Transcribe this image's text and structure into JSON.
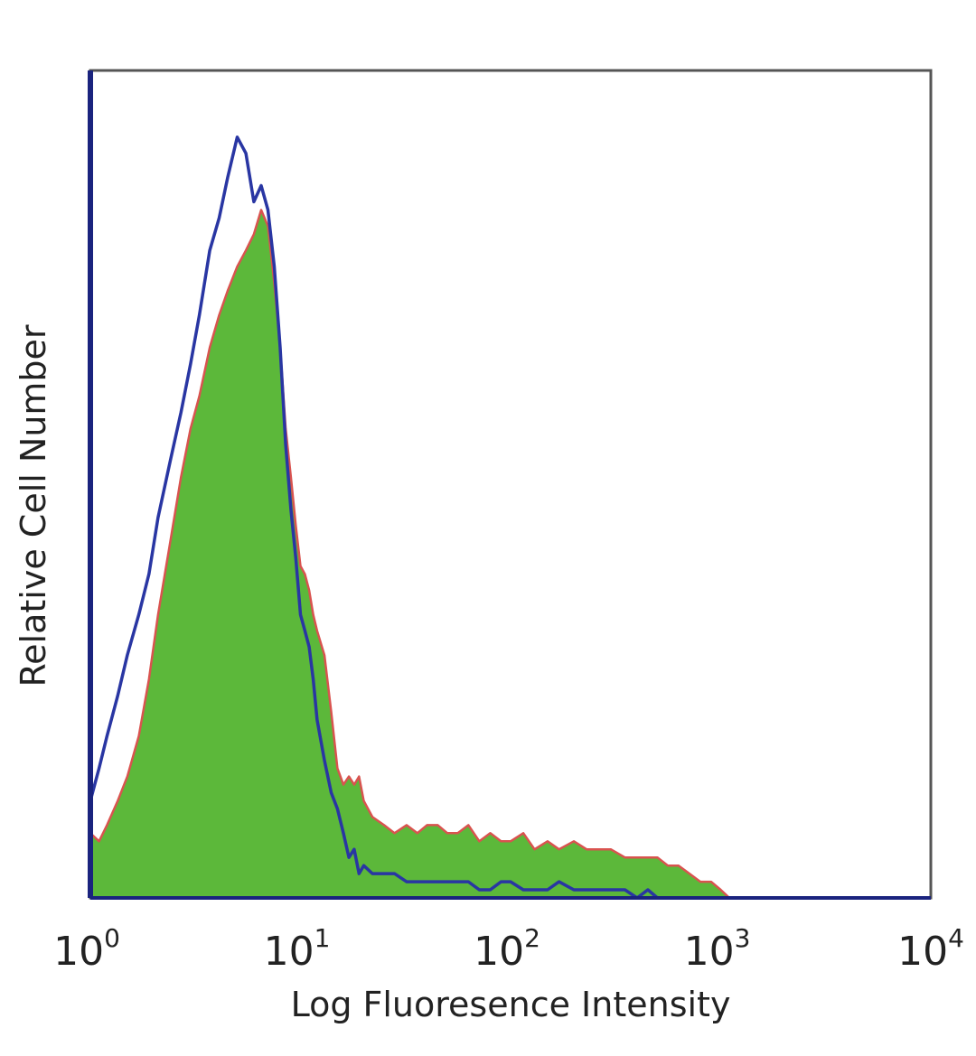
{
  "chart_data": {
    "type": "area",
    "xscale": "log",
    "xlim": [
      1,
      10000
    ],
    "ylim": [
      0,
      100
    ],
    "grid": false,
    "legend": "none",
    "xlabel": "Log Fluoresence Intensity",
    "ylabel": "Relative Cell Number",
    "x_ticks": [
      {
        "value": 1,
        "base": "10",
        "exp": "0"
      },
      {
        "value": 10,
        "base": "10",
        "exp": "1"
      },
      {
        "value": 100,
        "base": "10",
        "exp": "2"
      },
      {
        "value": 1000,
        "base": "10",
        "exp": "3"
      },
      {
        "value": 10000,
        "base": "10",
        "exp": "4"
      }
    ],
    "colors": {
      "frame": "#555555",
      "axis": "#1a237e",
      "fill": "#5cb83a",
      "fill_outline": "#d9534f",
      "control": "#2936a3"
    },
    "series": [
      {
        "style": "filled",
        "x": [
          1,
          1.1,
          1.2,
          1.35,
          1.5,
          1.7,
          1.9,
          2.1,
          2.4,
          2.7,
          3.0,
          3.3,
          3.7,
          4.1,
          4.5,
          5.0,
          5.5,
          6.0,
          6.5,
          7.0,
          7.5,
          8.0,
          8.5,
          9.0,
          9.5,
          10,
          10.5,
          11,
          11.5,
          12,
          13,
          14,
          15,
          16,
          17,
          18,
          19,
          20,
          22,
          25,
          28,
          32,
          36,
          40,
          45,
          50,
          56,
          63,
          71,
          80,
          90,
          100,
          115,
          130,
          150,
          170,
          200,
          230,
          260,
          300,
          350,
          400,
          450,
          500,
          560,
          630,
          710,
          800,
          900,
          1000,
          1100
        ],
        "y": [
          8,
          7,
          9,
          12,
          15,
          20,
          27,
          35,
          44,
          52,
          58,
          62,
          68,
          72,
          75,
          78,
          80,
          82,
          85,
          83,
          76,
          68,
          58,
          52,
          46,
          41,
          40,
          38,
          35,
          33,
          30,
          23,
          16,
          14,
          15,
          14,
          15,
          12,
          10,
          9,
          8,
          9,
          8,
          9,
          9,
          8,
          8,
          9,
          7,
          8,
          7,
          7,
          8,
          6,
          7,
          6,
          7,
          6,
          6,
          6,
          5,
          5,
          5,
          5,
          4,
          4,
          3,
          2,
          2,
          1,
          0
        ]
      },
      {
        "style": "outline",
        "x": [
          1,
          1.1,
          1.2,
          1.35,
          1.5,
          1.7,
          1.9,
          2.1,
          2.4,
          2.7,
          3.0,
          3.3,
          3.7,
          4.1,
          4.5,
          5.0,
          5.5,
          6.0,
          6.5,
          7.0,
          7.5,
          8.0,
          8.5,
          9.0,
          9.5,
          10,
          10.5,
          11,
          11.5,
          12,
          13,
          14,
          15,
          16,
          17,
          18,
          19,
          20,
          22,
          25,
          28,
          32,
          36,
          40,
          45,
          50,
          56,
          63,
          71,
          80,
          90,
          100,
          115,
          130,
          150,
          170,
          200,
          230,
          260,
          300,
          350,
          400,
          450,
          500,
          560,
          630
        ],
        "y": [
          12,
          16,
          20,
          25,
          30,
          35,
          40,
          47,
          54,
          60,
          66,
          72,
          80,
          84,
          89,
          94,
          92,
          86,
          88,
          85,
          78,
          68,
          56,
          48,
          42,
          35,
          33,
          31,
          27,
          22,
          17,
          13,
          11,
          8,
          5,
          6,
          3,
          4,
          3,
          3,
          3,
          2,
          2,
          2,
          2,
          2,
          2,
          2,
          1,
          1,
          2,
          2,
          1,
          1,
          1,
          2,
          1,
          1,
          1,
          1,
          1,
          0,
          1,
          0,
          0,
          0
        ]
      }
    ]
  }
}
